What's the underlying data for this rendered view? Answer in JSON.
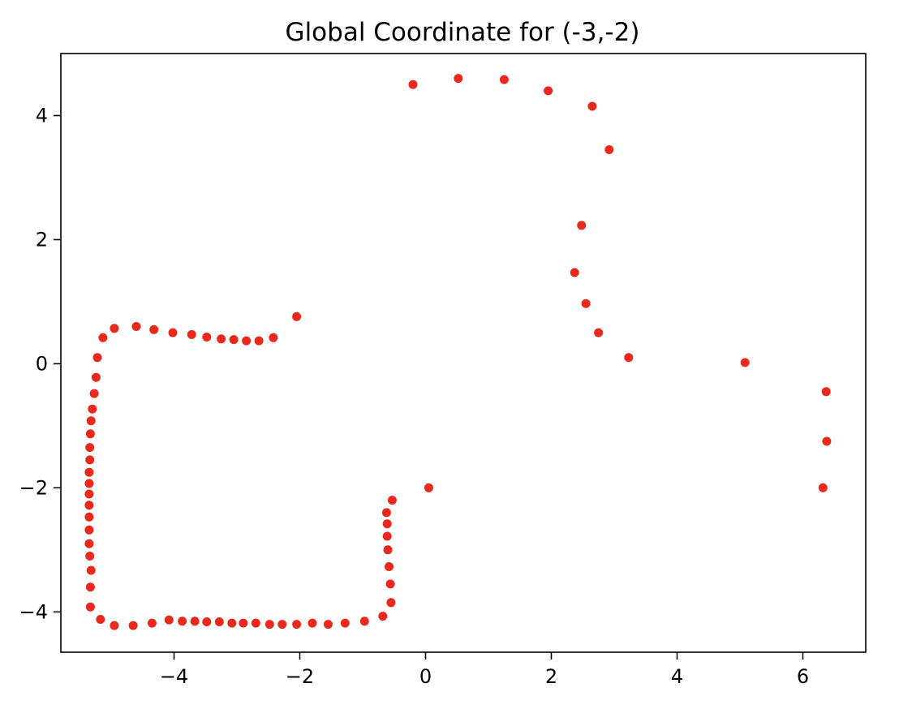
{
  "chart_data": {
    "type": "scatter",
    "title": "Global Coordinate for (-3,-2)",
    "xlabel": "",
    "ylabel": "",
    "xlim": [
      -5.8,
      7.0
    ],
    "ylim": [
      -4.65,
      5.0
    ],
    "xticks": [
      {
        "value": -4,
        "label": "−4"
      },
      {
        "value": -2,
        "label": "−2"
      },
      {
        "value": 0,
        "label": "0"
      },
      {
        "value": 2,
        "label": "2"
      },
      {
        "value": 4,
        "label": "4"
      },
      {
        "value": 6,
        "label": "6"
      }
    ],
    "yticks": [
      {
        "value": -4,
        "label": "−4"
      },
      {
        "value": -2,
        "label": "−2"
      },
      {
        "value": 0,
        "label": "0"
      },
      {
        "value": 2,
        "label": "2"
      },
      {
        "value": 4,
        "label": "4"
      }
    ],
    "grid": false,
    "legend": "none",
    "series": [
      {
        "color": "#e8291c",
        "points": [
          [
            -0.2,
            4.5
          ],
          [
            0.52,
            4.6
          ],
          [
            1.25,
            4.58
          ],
          [
            1.95,
            4.4
          ],
          [
            2.65,
            4.15
          ],
          [
            2.92,
            3.45
          ],
          [
            2.48,
            2.23
          ],
          [
            2.37,
            1.47
          ],
          [
            2.55,
            0.97
          ],
          [
            2.75,
            0.5
          ],
          [
            3.23,
            0.1
          ],
          [
            5.08,
            0.02
          ],
          [
            6.37,
            -0.45
          ],
          [
            6.38,
            -1.25
          ],
          [
            6.32,
            -2.0
          ],
          [
            0.05,
            -2.0
          ],
          [
            -2.05,
            0.76
          ],
          [
            -2.42,
            0.42
          ],
          [
            -2.65,
            0.37
          ],
          [
            -2.85,
            0.37
          ],
          [
            -3.05,
            0.39
          ],
          [
            -3.25,
            0.4
          ],
          [
            -3.48,
            0.43
          ],
          [
            -3.72,
            0.47
          ],
          [
            -4.02,
            0.5
          ],
          [
            -4.32,
            0.55
          ],
          [
            -4.6,
            0.6
          ],
          [
            -4.95,
            0.57
          ],
          [
            -5.13,
            0.42
          ],
          [
            -5.22,
            0.1
          ],
          [
            -5.24,
            -0.22
          ],
          [
            -5.27,
            -0.48
          ],
          [
            -5.3,
            -0.73
          ],
          [
            -5.32,
            -0.92
          ],
          [
            -5.33,
            -1.13
          ],
          [
            -5.34,
            -1.35
          ],
          [
            -5.34,
            -1.55
          ],
          [
            -5.35,
            -1.75
          ],
          [
            -5.35,
            -1.93
          ],
          [
            -5.35,
            -2.1
          ],
          [
            -5.35,
            -2.28
          ],
          [
            -5.35,
            -2.47
          ],
          [
            -5.35,
            -2.68
          ],
          [
            -5.35,
            -2.9
          ],
          [
            -5.34,
            -3.1
          ],
          [
            -5.32,
            -3.33
          ],
          [
            -5.33,
            -3.6
          ],
          [
            -5.33,
            -3.92
          ],
          [
            -5.17,
            -4.12
          ],
          [
            -4.95,
            -4.22
          ],
          [
            -4.65,
            -4.22
          ],
          [
            -4.35,
            -4.18
          ],
          [
            -4.08,
            -4.13
          ],
          [
            -3.87,
            -4.15
          ],
          [
            -3.67,
            -4.15
          ],
          [
            -3.48,
            -4.16
          ],
          [
            -3.28,
            -4.16
          ],
          [
            -3.08,
            -4.18
          ],
          [
            -2.9,
            -4.18
          ],
          [
            -2.7,
            -4.18
          ],
          [
            -2.48,
            -4.2
          ],
          [
            -2.28,
            -4.2
          ],
          [
            -2.05,
            -4.2
          ],
          [
            -1.8,
            -4.18
          ],
          [
            -1.55,
            -4.2
          ],
          [
            -1.28,
            -4.18
          ],
          [
            -0.97,
            -4.15
          ],
          [
            -0.68,
            -4.07
          ],
          [
            -0.55,
            -3.85
          ],
          [
            -0.56,
            -3.55
          ],
          [
            -0.58,
            -3.27
          ],
          [
            -0.6,
            -3.0
          ],
          [
            -0.61,
            -2.78
          ],
          [
            -0.61,
            -2.58
          ],
          [
            -0.62,
            -2.4
          ],
          [
            -0.53,
            -2.2
          ]
        ]
      }
    ]
  }
}
